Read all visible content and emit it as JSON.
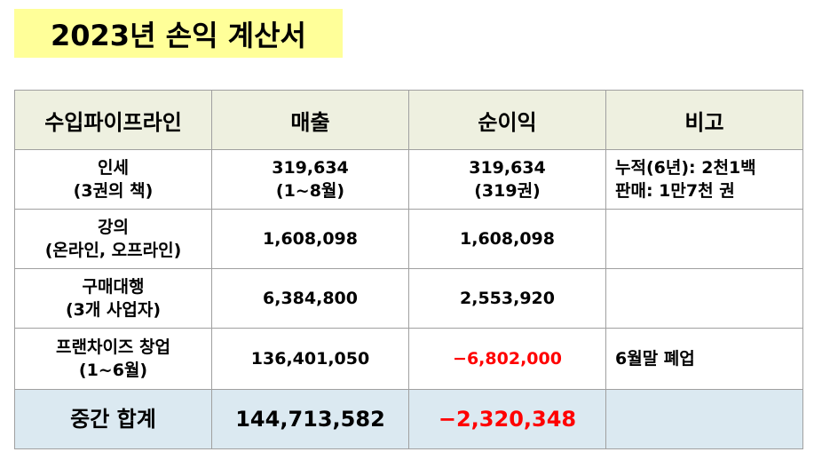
{
  "title": "2023년 손익 계산서",
  "table": {
    "headers": [
      "수입파이프라인",
      "매출",
      "순이익",
      "비고"
    ],
    "rows": [
      {
        "name": [
          "인세",
          "(3권의 책)"
        ],
        "revenue": [
          "319,634",
          "(1~8월)"
        ],
        "profit": [
          "319,634",
          "(319권)"
        ],
        "note": [
          "누적(6년): 2천1백",
          "판매: 1만7천 권"
        ]
      },
      {
        "name": [
          "강의",
          "(온라인, 오프라인)"
        ],
        "revenue": [
          "1,608,098"
        ],
        "profit": [
          "1,608,098"
        ],
        "note": []
      },
      {
        "name": [
          "구매대행",
          "(3개 사업자)"
        ],
        "revenue": [
          "6,384,800"
        ],
        "profit": [
          "2,553,920"
        ],
        "note": []
      },
      {
        "name": [
          "프랜차이즈 창업",
          "(1~6월)"
        ],
        "revenue": [
          "136,401,050"
        ],
        "profit": [
          "−6,802,000"
        ],
        "note": [
          "6월말 폐업"
        ]
      }
    ],
    "total": {
      "label": "중간 합계",
      "revenue": "144,713,582",
      "profit": "−2,320,348",
      "note": ""
    }
  },
  "colors": {
    "title_bg": "#ffff99",
    "header_bg": "#eef0e0",
    "total_bg": "#dbe9f1",
    "negative": "#ff0000",
    "border": "#a0a0a0"
  }
}
